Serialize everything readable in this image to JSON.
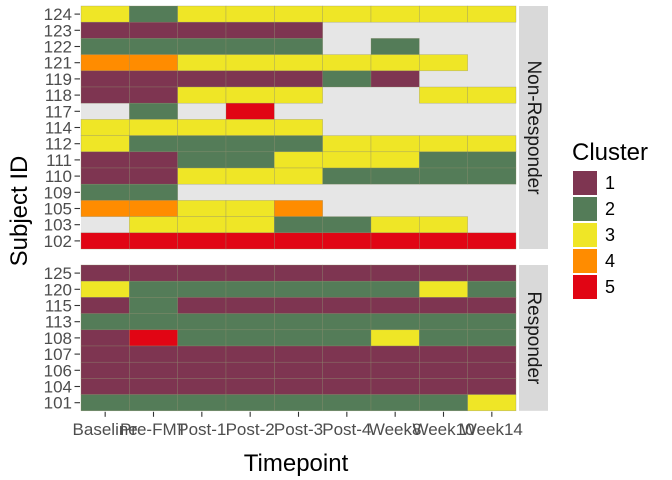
{
  "chart_data": {
    "type": "heatmap",
    "xlabel": "Timepoint",
    "ylabel": "Subject ID",
    "timepoints": [
      "Baseline",
      "Pre-FMT",
      "Post-1",
      "Post-2",
      "Post-3",
      "Post-4",
      "Week8",
      "Week10",
      "Week14"
    ],
    "legend": {
      "title": "Cluster",
      "entries": [
        {
          "label": "1",
          "color": "#7E3551"
        },
        {
          "label": "2",
          "color": "#547C58"
        },
        {
          "label": "3",
          "color": "#EFE626"
        },
        {
          "label": "4",
          "color": "#FF8C00"
        },
        {
          "label": "5",
          "color": "#E10514"
        }
      ]
    },
    "panels": [
      {
        "label": "Non-Responder",
        "subjects": [
          "124",
          "123",
          "122",
          "121",
          "119",
          "118",
          "117",
          "114",
          "112",
          "111",
          "110",
          "109",
          "105",
          "103",
          "102"
        ],
        "clusters": [
          [
            3,
            2,
            3,
            3,
            3,
            3,
            3,
            3,
            3
          ],
          [
            1,
            1,
            1,
            1,
            1,
            null,
            null,
            null,
            null
          ],
          [
            2,
            2,
            2,
            2,
            2,
            null,
            2,
            null,
            null
          ],
          [
            4,
            4,
            3,
            3,
            3,
            3,
            3,
            3,
            null
          ],
          [
            1,
            1,
            1,
            1,
            1,
            2,
            1,
            null,
            null
          ],
          [
            1,
            1,
            3,
            3,
            3,
            null,
            null,
            3,
            3
          ],
          [
            null,
            2,
            null,
            5,
            null,
            null,
            null,
            null,
            null
          ],
          [
            3,
            3,
            3,
            3,
            3,
            null,
            null,
            null,
            null
          ],
          [
            3,
            2,
            2,
            2,
            2,
            3,
            3,
            3,
            3
          ],
          [
            1,
            1,
            2,
            2,
            3,
            3,
            3,
            2,
            2
          ],
          [
            1,
            1,
            3,
            3,
            3,
            2,
            2,
            2,
            2
          ],
          [
            2,
            2,
            null,
            null,
            null,
            null,
            null,
            null,
            null
          ],
          [
            4,
            4,
            3,
            3,
            4,
            null,
            null,
            null,
            null
          ],
          [
            null,
            3,
            3,
            3,
            2,
            2,
            3,
            3,
            null
          ],
          [
            5,
            5,
            5,
            5,
            5,
            5,
            5,
            5,
            5
          ]
        ]
      },
      {
        "label": "Responder",
        "subjects": [
          "125",
          "120",
          "115",
          "113",
          "108",
          "107",
          "106",
          "104",
          "101"
        ],
        "clusters": [
          [
            1,
            1,
            1,
            1,
            1,
            1,
            1,
            1,
            1
          ],
          [
            3,
            2,
            2,
            2,
            2,
            2,
            2,
            3,
            2
          ],
          [
            1,
            2,
            1,
            1,
            1,
            1,
            1,
            1,
            1
          ],
          [
            2,
            2,
            2,
            2,
            2,
            2,
            2,
            2,
            2
          ],
          [
            1,
            5,
            2,
            2,
            2,
            2,
            3,
            2,
            2
          ],
          [
            1,
            1,
            1,
            1,
            1,
            1,
            1,
            1,
            1
          ],
          [
            1,
            1,
            1,
            1,
            1,
            1,
            1,
            1,
            1
          ],
          [
            1,
            1,
            1,
            1,
            1,
            1,
            1,
            1,
            1
          ],
          [
            2,
            2,
            2,
            2,
            2,
            2,
            2,
            2,
            3
          ]
        ]
      }
    ]
  }
}
